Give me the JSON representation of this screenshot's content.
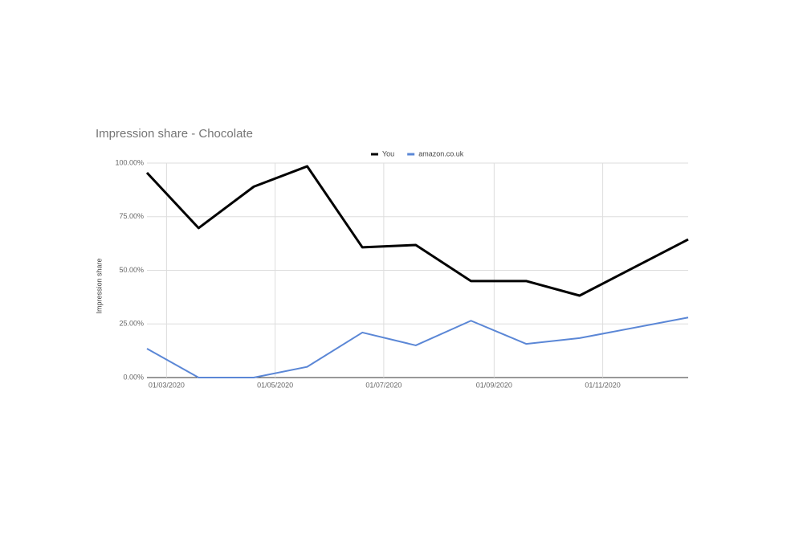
{
  "chart_data": {
    "type": "line",
    "title": "Impression share - Chocolate",
    "y_label": "Impression share",
    "x": [
      "19/02/2020",
      "19/03/2020",
      "19/04/2020",
      "19/05/2020",
      "19/06/2020",
      "19/07/2020",
      "19/08/2020",
      "19/09/2020",
      "19/10/2020",
      "19/12/2020"
    ],
    "series": [
      {
        "name": "You",
        "color": "#000000",
        "values": [
          95.5,
          69.7,
          89,
          98.5,
          60.7,
          61.8,
          45,
          45,
          38.2,
          64.4
        ]
      },
      {
        "name": "amazon.co.uk",
        "color": "#5b87d6",
        "values": [
          13.5,
          0,
          0,
          5,
          21,
          15,
          26.5,
          15.7,
          18.4,
          28
        ]
      }
    ],
    "xlim": [
      "19/02/2020",
      "19/12/2020"
    ],
    "xticks": [
      "01/03/2020",
      "01/05/2020",
      "01/07/2020",
      "01/09/2020",
      "01/11/2020"
    ],
    "ylim": [
      0,
      100
    ],
    "yticks": [
      {
        "value": 0,
        "label": "0.00%"
      },
      {
        "value": 25,
        "label": "25.00%"
      },
      {
        "value": 50,
        "label": "50.00%"
      },
      {
        "value": 75,
        "label": "75.00%"
      },
      {
        "value": 100,
        "label": "100.00%"
      }
    ],
    "grid": true,
    "legend": "top"
  }
}
